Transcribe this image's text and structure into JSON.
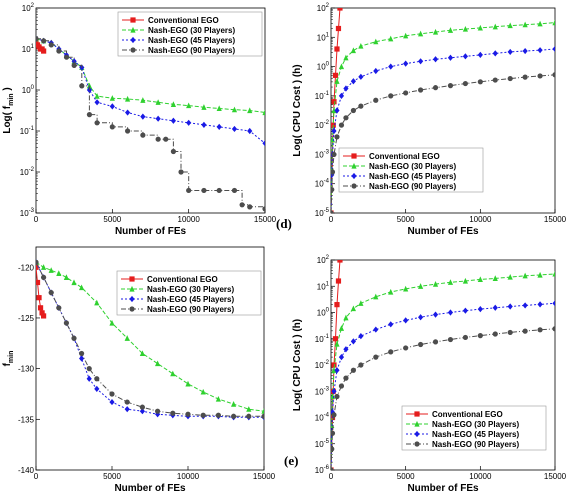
{
  "colors": {
    "conventional": "#e51c1c",
    "p30": "#2fd12f",
    "p45": "#1a1ae6",
    "p90": "#4d4d4d"
  },
  "legend_labels": [
    "Conventional EGO",
    "Nash-EGO (30 Players)",
    "Nash-EGO (45 Players)",
    "Nash-EGO (90 Players)"
  ],
  "panel_labels": [
    "(d)",
    "(e)"
  ],
  "chart_data": [
    {
      "type": "line",
      "xlabel": "Number of FEs",
      "ylabel": "Log( f_min )",
      "xlim": [
        0,
        15000
      ],
      "ylim": [
        -3,
        2
      ],
      "log_y": true,
      "x_ticks": [
        "0",
        "5000",
        "10000",
        "15000"
      ],
      "y_ticks": [
        "10^{-3}",
        "10^{-2}",
        "10^{-1}",
        "10^{0}",
        "10^{1}",
        "10^{2}"
      ],
      "legend_position": "top-right",
      "series": [
        {
          "name": "Conventional EGO",
          "marker": "square",
          "step": true,
          "x": [
            0,
            100,
            200,
            300,
            400,
            500
          ],
          "y": [
            1.2,
            1.1,
            1.05,
            1.0,
            1.0,
            0.95
          ]
        },
        {
          "name": "Nash-EGO (30 Players)",
          "marker": "triangle",
          "step": false,
          "x": [
            0,
            500,
            1000,
            1500,
            2000,
            2500,
            3000,
            3500,
            4000,
            5000,
            6000,
            7000,
            8000,
            9000,
            10000,
            11000,
            12000,
            13000,
            14000,
            15000
          ],
          "y": [
            1.25,
            1.2,
            1.15,
            1.0,
            0.85,
            0.7,
            0.55,
            0.1,
            -0.15,
            -0.2,
            -0.22,
            -0.25,
            -0.3,
            -0.35,
            -0.38,
            -0.42,
            -0.45,
            -0.48,
            -0.5,
            -0.55
          ]
        },
        {
          "name": "Nash-EGO (45 Players)",
          "marker": "diamond",
          "step": false,
          "x": [
            0,
            500,
            1000,
            1500,
            2000,
            2500,
            3000,
            3500,
            4000,
            5000,
            6000,
            7000,
            8000,
            9000,
            10000,
            11000,
            12000,
            13000,
            14000,
            15000
          ],
          "y": [
            1.25,
            1.2,
            1.15,
            1.0,
            0.85,
            0.7,
            0.55,
            0.0,
            -0.3,
            -0.4,
            -0.55,
            -0.65,
            -0.7,
            -0.75,
            -0.8,
            -0.85,
            -0.9,
            -0.95,
            -1.0,
            -1.3
          ]
        },
        {
          "name": "Nash-EGO (90 Players)",
          "marker": "circle",
          "step": true,
          "x": [
            0,
            500,
            1000,
            1500,
            2000,
            2500,
            3000,
            3500,
            4000,
            5000,
            6000,
            7000,
            8000,
            8500,
            9000,
            9500,
            10000,
            11000,
            12000,
            13000,
            13500,
            14000,
            15000
          ],
          "y": [
            1.25,
            1.2,
            1.1,
            0.95,
            0.8,
            0.6,
            0.1,
            -0.6,
            -0.8,
            -0.9,
            -1.0,
            -1.1,
            -1.2,
            -1.2,
            -1.5,
            -2.0,
            -2.45,
            -2.45,
            -2.45,
            -2.45,
            -2.8,
            -2.85,
            -2.9
          ]
        }
      ]
    },
    {
      "type": "line",
      "xlabel": "Number of FEs",
      "ylabel": "Log( CPU Cost ) (h)",
      "xlim": [
        0,
        15000
      ],
      "ylim": [
        -5,
        2
      ],
      "log_y": true,
      "x_ticks": [
        "0",
        "5000",
        "10000",
        "15000"
      ],
      "y_ticks": [
        "10^{-5}",
        "10^{-4}",
        "10^{-3}",
        "10^{-2}",
        "10^{-1}",
        "10^{0}",
        "10^{1}",
        "10^{2}"
      ],
      "legend_position": "center-left",
      "series": [
        {
          "name": "Conventional EGO",
          "marker": "square",
          "x": [
            0,
            100,
            150,
            200,
            300,
            400,
            500,
            600
          ],
          "y": [
            -5,
            -3,
            -2,
            -1.2,
            -0.3,
            0.6,
            1.3,
            2.0
          ]
        },
        {
          "name": "Nash-EGO (30 Players)",
          "marker": "triangle",
          "x": [
            0,
            50,
            100,
            200,
            400,
            700,
            1000,
            1500,
            2000,
            3000,
            4000,
            5000,
            6000,
            7000,
            8000,
            9000,
            10000,
            11000,
            12000,
            13000,
            14000,
            15000
          ],
          "y": [
            -5,
            -3.5,
            -2.5,
            -1.5,
            -0.5,
            0.0,
            0.3,
            0.55,
            0.7,
            0.85,
            0.95,
            1.05,
            1.12,
            1.18,
            1.24,
            1.28,
            1.32,
            1.36,
            1.4,
            1.43,
            1.46,
            1.5
          ]
        },
        {
          "name": "Nash-EGO (45 Players)",
          "marker": "diamond",
          "x": [
            0,
            50,
            100,
            200,
            400,
            700,
            1000,
            1500,
            2000,
            3000,
            4000,
            5000,
            6000,
            7000,
            8000,
            9000,
            10000,
            11000,
            12000,
            13000,
            14000,
            15000
          ],
          "y": [
            -5,
            -3.7,
            -3.0,
            -2.2,
            -1.5,
            -1.0,
            -0.75,
            -0.5,
            -0.35,
            -0.15,
            0.0,
            0.1,
            0.18,
            0.25,
            0.3,
            0.35,
            0.4,
            0.45,
            0.5,
            0.53,
            0.56,
            0.6
          ]
        },
        {
          "name": "Nash-EGO (90 Players)",
          "marker": "circle",
          "x": [
            0,
            50,
            100,
            200,
            400,
            700,
            1000,
            1500,
            2000,
            3000,
            4000,
            5000,
            6000,
            7000,
            8000,
            9000,
            10000,
            11000,
            12000,
            13000,
            14000,
            15000
          ],
          "y": [
            -5,
            -4.2,
            -3.6,
            -3.0,
            -2.4,
            -2.0,
            -1.75,
            -1.5,
            -1.35,
            -1.15,
            -1.0,
            -0.9,
            -0.8,
            -0.72,
            -0.65,
            -0.58,
            -0.52,
            -0.46,
            -0.41,
            -0.36,
            -0.32,
            -0.28
          ]
        }
      ]
    },
    {
      "type": "line",
      "xlabel": "Number of FEs",
      "ylabel": "f_min",
      "xlim": [
        0,
        15000
      ],
      "ylim": [
        -140,
        -118
      ],
      "log_y": false,
      "x_ticks": [
        "0",
        "5000",
        "10000",
        "15000"
      ],
      "y_ticks": [
        "-140",
        "-135",
        "-130",
        "-125",
        "-120"
      ],
      "y_tick_values": [
        -140,
        -135,
        -130,
        -125,
        -120
      ],
      "legend_position": "top",
      "series": [
        {
          "name": "Conventional EGO",
          "marker": "square",
          "x": [
            0,
            100,
            200,
            300,
            400,
            500
          ],
          "y": [
            -120,
            -121.5,
            -123,
            -124,
            -124.5,
            -124.8
          ]
        },
        {
          "name": "Nash-EGO (30 Players)",
          "marker": "triangle",
          "x": [
            0,
            500,
            1000,
            1500,
            2000,
            2500,
            3000,
            4000,
            5000,
            6000,
            7000,
            8000,
            9000,
            10000,
            11000,
            12000,
            13000,
            14000,
            15000
          ],
          "y": [
            -119.5,
            -120,
            -120.3,
            -120.6,
            -121,
            -121.5,
            -122,
            -123.5,
            -125.5,
            -127,
            -128.5,
            -129.5,
            -130.5,
            -131.5,
            -132.3,
            -133,
            -133.5,
            -134,
            -134.2
          ]
        },
        {
          "name": "Nash-EGO (45 Players)",
          "marker": "diamond",
          "x": [
            0,
            500,
            1000,
            1500,
            2000,
            2500,
            3000,
            3500,
            4000,
            5000,
            6000,
            7000,
            8000,
            9000,
            10000,
            11000,
            12000,
            13000,
            14000,
            15000
          ],
          "y": [
            -119.5,
            -121,
            -122.5,
            -124,
            -125.5,
            -127,
            -129,
            -131,
            -132,
            -133.3,
            -134,
            -134.2,
            -134.5,
            -134.6,
            -134.7,
            -134.7,
            -134.7,
            -134.8,
            -134.8,
            -134.8
          ]
        },
        {
          "name": "Nash-EGO (90 Players)",
          "marker": "circle",
          "x": [
            0,
            500,
            1000,
            1500,
            2000,
            2500,
            3000,
            3500,
            4000,
            5000,
            6000,
            7000,
            8000,
            9000,
            10000,
            11000,
            12000,
            13000,
            14000,
            15000
          ],
          "y": [
            -119.5,
            -121,
            -122.5,
            -124,
            -125.5,
            -127,
            -128.5,
            -130,
            -131,
            -132.5,
            -133.3,
            -133.8,
            -134.2,
            -134.4,
            -134.5,
            -134.6,
            -134.6,
            -134.7,
            -134.7,
            -134.7
          ]
        }
      ]
    },
    {
      "type": "line",
      "xlabel": "Number of FEs",
      "ylabel": "Log( CPU Cost ) (h)",
      "xlim": [
        0,
        15000
      ],
      "ylim": [
        -6,
        2
      ],
      "log_y": true,
      "x_ticks": [
        "0",
        "5000",
        "10000",
        "15000"
      ],
      "y_ticks": [
        "10^{-6}",
        "10^{-5}",
        "10^{-4}",
        "10^{-3}",
        "10^{-2}",
        "10^{-1}",
        "10^{0}",
        "10^{1}",
        "10^{2}"
      ],
      "legend_position": "bottom",
      "series": [
        {
          "name": "Conventional EGO",
          "marker": "square",
          "x": [
            0,
            100,
            150,
            200,
            300,
            400,
            500,
            600
          ],
          "y": [
            -6,
            -4,
            -3,
            -2,
            -1,
            0.3,
            1.2,
            2.0
          ]
        },
        {
          "name": "Nash-EGO (30 Players)",
          "marker": "triangle",
          "x": [
            0,
            50,
            100,
            200,
            400,
            700,
            1000,
            1500,
            2000,
            3000,
            4000,
            5000,
            6000,
            7000,
            8000,
            9000,
            10000,
            11000,
            12000,
            13000,
            14000,
            15000
          ],
          "y": [
            -6,
            -4.3,
            -3.2,
            -2.2,
            -1.2,
            -0.6,
            -0.2,
            0.15,
            0.35,
            0.6,
            0.78,
            0.9,
            1.0,
            1.08,
            1.15,
            1.2,
            1.26,
            1.3,
            1.35,
            1.4,
            1.43,
            1.47
          ]
        },
        {
          "name": "Nash-EGO (45 Players)",
          "marker": "diamond",
          "x": [
            0,
            50,
            100,
            200,
            400,
            700,
            1000,
            1500,
            2000,
            3000,
            4000,
            5000,
            6000,
            7000,
            8000,
            9000,
            10000,
            11000,
            12000,
            13000,
            14000,
            15000
          ],
          "y": [
            -6,
            -4.6,
            -3.8,
            -3.0,
            -2.2,
            -1.7,
            -1.4,
            -1.1,
            -0.9,
            -0.65,
            -0.45,
            -0.3,
            -0.18,
            -0.08,
            0.0,
            0.07,
            0.13,
            0.18,
            0.23,
            0.27,
            0.31,
            0.35
          ]
        },
        {
          "name": "Nash-EGO (90 Players)",
          "marker": "circle",
          "x": [
            0,
            50,
            100,
            200,
            400,
            700,
            1000,
            1500,
            2000,
            3000,
            4000,
            5000,
            6000,
            7000,
            8000,
            9000,
            10000,
            11000,
            12000,
            13000,
            14000,
            15000
          ],
          "y": [
            -6,
            -5.2,
            -4.6,
            -3.9,
            -3.2,
            -2.8,
            -2.5,
            -2.2,
            -2.0,
            -1.7,
            -1.5,
            -1.35,
            -1.22,
            -1.12,
            -1.03,
            -0.95,
            -0.88,
            -0.82,
            -0.76,
            -0.71,
            -0.66,
            -0.62
          ]
        }
      ]
    }
  ]
}
